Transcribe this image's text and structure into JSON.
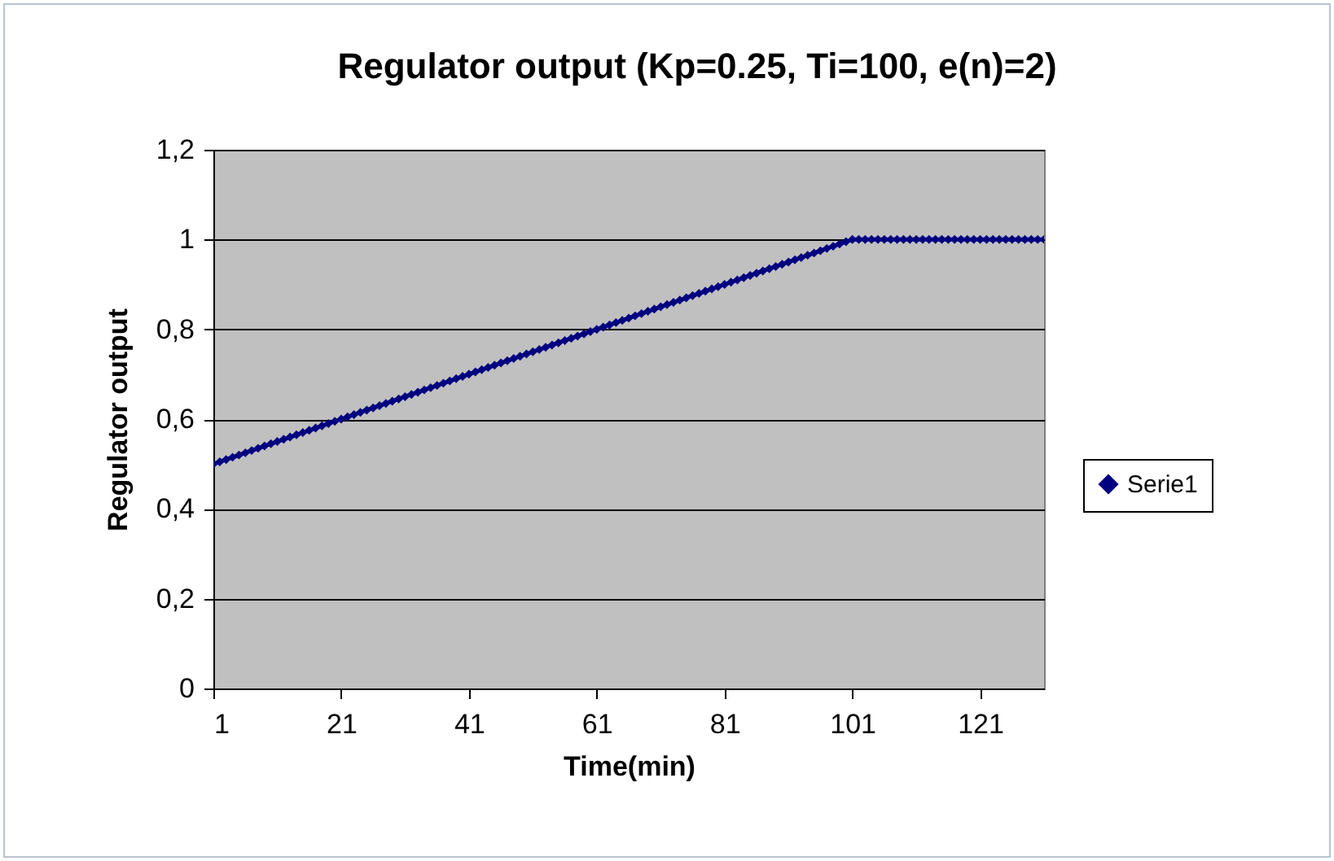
{
  "chart_data": {
    "type": "line",
    "title": "Regulator output (Kp=0.25, Ti=100, e(n)=2)",
    "xlabel": "Time(min)",
    "ylabel": "Regulator output",
    "x": [
      1,
      2,
      3,
      4,
      5,
      6,
      7,
      8,
      9,
      10,
      11,
      12,
      13,
      14,
      15,
      16,
      17,
      18,
      19,
      20,
      21,
      22,
      23,
      24,
      25,
      26,
      27,
      28,
      29,
      30,
      31,
      32,
      33,
      34,
      35,
      36,
      37,
      38,
      39,
      40,
      41,
      42,
      43,
      44,
      45,
      46,
      47,
      48,
      49,
      50,
      51,
      52,
      53,
      54,
      55,
      56,
      57,
      58,
      59,
      60,
      61,
      62,
      63,
      64,
      65,
      66,
      67,
      68,
      69,
      70,
      71,
      72,
      73,
      74,
      75,
      76,
      77,
      78,
      79,
      80,
      81,
      82,
      83,
      84,
      85,
      86,
      87,
      88,
      89,
      90,
      91,
      92,
      93,
      94,
      95,
      96,
      97,
      98,
      99,
      100,
      101,
      102,
      103,
      104,
      105,
      106,
      107,
      108,
      109,
      110,
      111,
      112,
      113,
      114,
      115,
      116,
      117,
      118,
      119,
      120,
      121,
      122,
      123,
      124,
      125,
      126,
      127,
      128,
      129,
      130,
      131
    ],
    "series": [
      {
        "name": "Serie1",
        "color": "#000080",
        "values": [
          0.5,
          0.505,
          0.51,
          0.515,
          0.52,
          0.525,
          0.53,
          0.535,
          0.54,
          0.545,
          0.55,
          0.555,
          0.56,
          0.565,
          0.57,
          0.575,
          0.58,
          0.585,
          0.59,
          0.595,
          0.6,
          0.605,
          0.61,
          0.615,
          0.62,
          0.625,
          0.63,
          0.635,
          0.64,
          0.645,
          0.65,
          0.655,
          0.66,
          0.665,
          0.67,
          0.675,
          0.68,
          0.685,
          0.69,
          0.695,
          0.7,
          0.705,
          0.71,
          0.715,
          0.72,
          0.725,
          0.73,
          0.735,
          0.74,
          0.745,
          0.75,
          0.755,
          0.76,
          0.765,
          0.77,
          0.775,
          0.78,
          0.785,
          0.79,
          0.795,
          0.8,
          0.805,
          0.81,
          0.815,
          0.82,
          0.825,
          0.83,
          0.835,
          0.84,
          0.845,
          0.85,
          0.855,
          0.86,
          0.865,
          0.87,
          0.875,
          0.88,
          0.885,
          0.89,
          0.895,
          0.9,
          0.905,
          0.91,
          0.915,
          0.92,
          0.925,
          0.93,
          0.935,
          0.94,
          0.945,
          0.95,
          0.955,
          0.96,
          0.965,
          0.97,
          0.975,
          0.98,
          0.985,
          0.99,
          0.995,
          1,
          1,
          1,
          1,
          1,
          1,
          1,
          1,
          1,
          1,
          1,
          1,
          1,
          1,
          1,
          1,
          1,
          1,
          1,
          1,
          1,
          1,
          1,
          1,
          1,
          1,
          1,
          1,
          1,
          1,
          1
        ]
      }
    ],
    "xlim": [
      1,
      131
    ],
    "xticks": [
      1,
      21,
      41,
      61,
      81,
      101,
      121
    ],
    "ylim": [
      0,
      1.2
    ],
    "yticks": [
      0,
      {
        "value": 0.2,
        "label": "0,2"
      },
      {
        "value": 0.4,
        "label": "0,4"
      },
      {
        "value": 0.6,
        "label": "0,6"
      },
      {
        "value": 0.8,
        "label": "0,8"
      },
      1,
      {
        "value": 1.2,
        "label": "1,2"
      }
    ],
    "grid": "y",
    "legend": "right",
    "marker": "diamond",
    "line_style": "solid"
  }
}
